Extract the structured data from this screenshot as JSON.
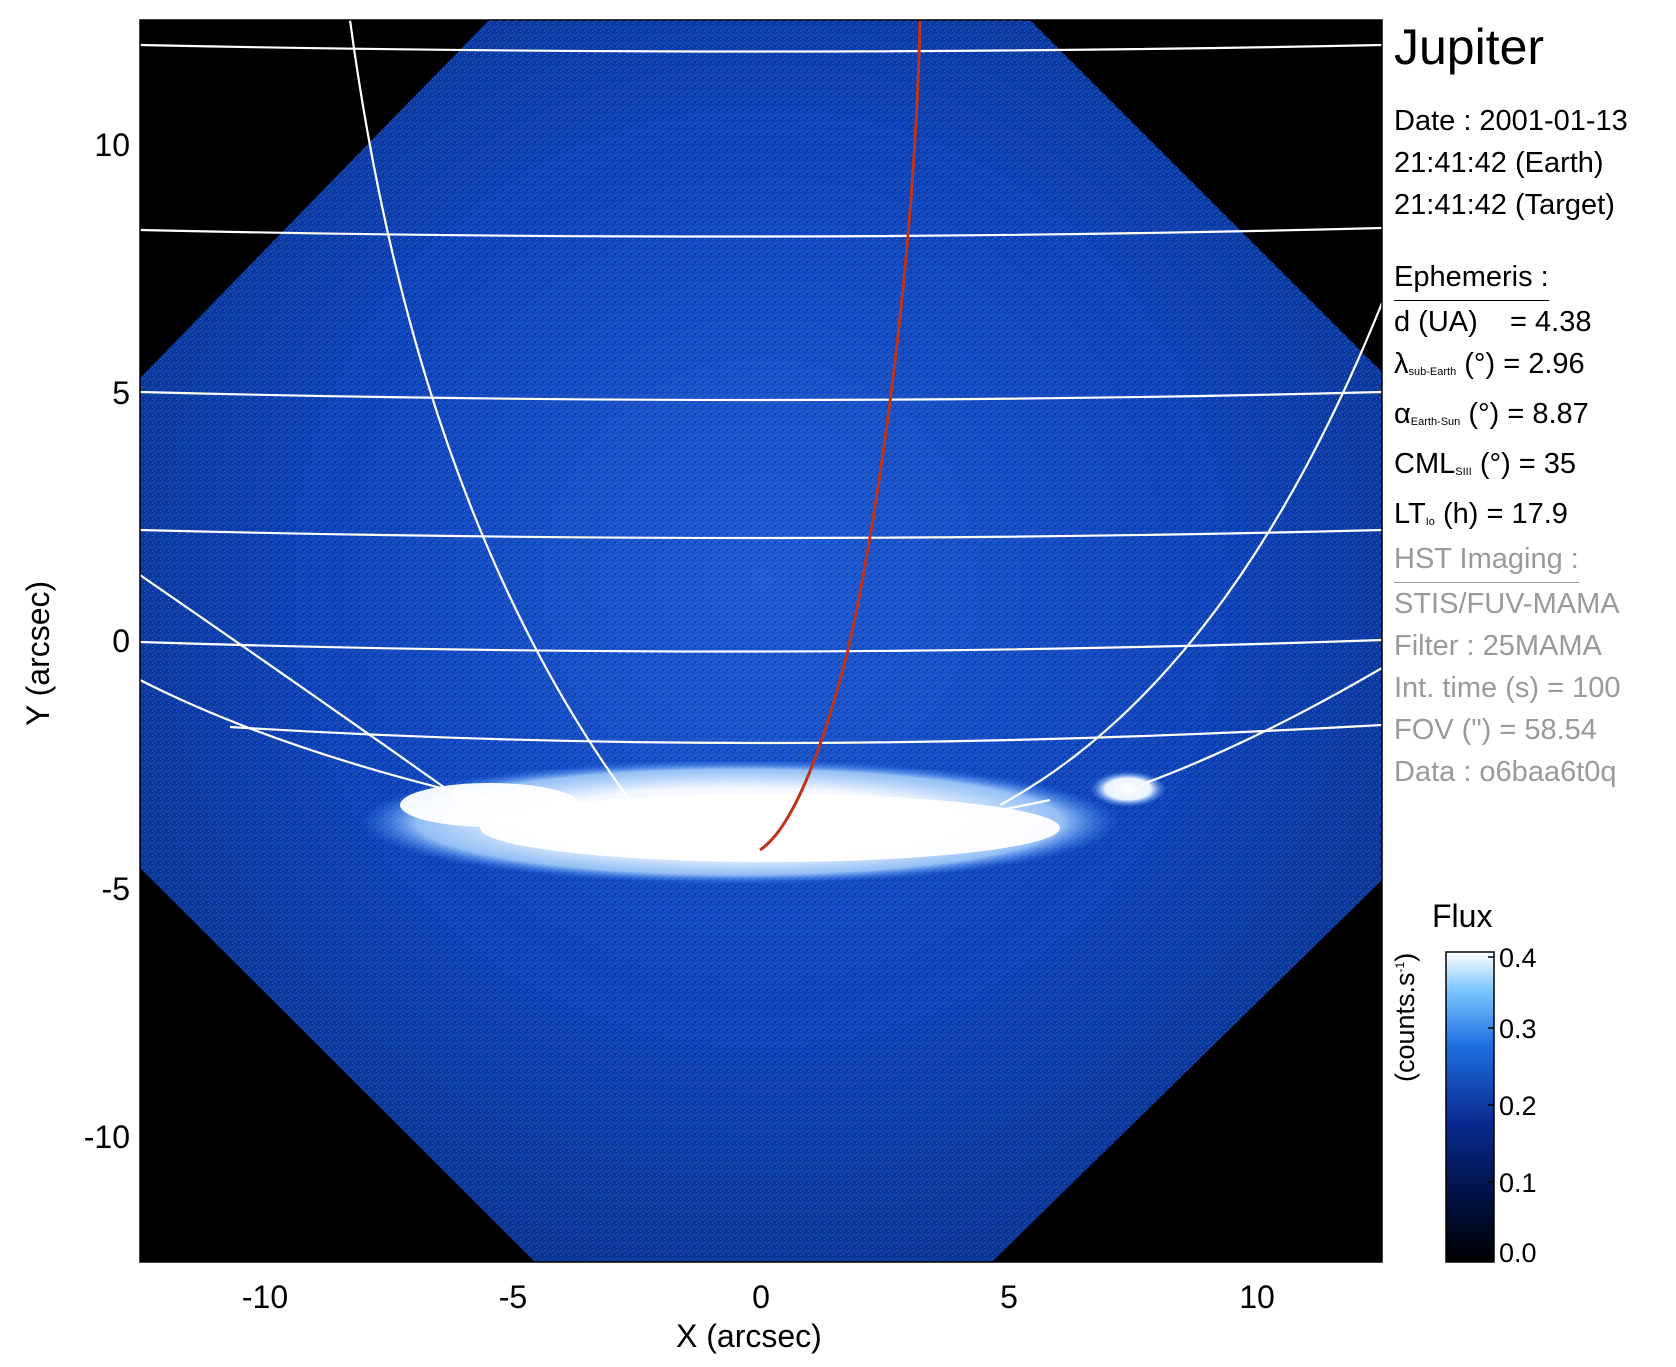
{
  "title": "Jupiter",
  "observation": {
    "date_line": "Date : 2001-01-13",
    "time_earth": "21:41:42 (Earth)",
    "time_target": "21:41:42 (Target)"
  },
  "ephemeris": {
    "heading": "Ephemeris :",
    "d_label": "d (UA)",
    "d_value": "= 4.38",
    "lambda_symbol": "λ",
    "lambda_sub": "sub-Earth",
    "lambda_value": "(°) = 2.96",
    "alpha_symbol": "α",
    "alpha_sub": "Earth-Sun",
    "alpha_value": "(°) = 8.87",
    "cml_symbol": "CML",
    "cml_sub": "SIII",
    "cml_value": "(°) = 35",
    "lt_symbol": "LT",
    "lt_sub": "Io",
    "lt_value": "(h) = 17.9"
  },
  "imaging": {
    "heading": "HST Imaging :",
    "instrument": "STIS/FUV-MAMA",
    "filter": "Filter : 25MAMA",
    "int_time": "Int. time (s) = 100",
    "fov": "FOV (\") = 58.54",
    "data": "Data : o6baa6t0q"
  },
  "colorbar": {
    "title": "Flux",
    "label_main": "(counts.s",
    "label_sup": "-1",
    "label_end": ")",
    "ticks": [
      "0.4",
      "0.3",
      "0.2",
      "0.1",
      "0.0"
    ],
    "colors": [
      "#000000",
      "#001040",
      "#0a2a90",
      "#1f6fe0",
      "#7fc8ff",
      "#ffffff"
    ]
  },
  "axes": {
    "xlabel": "X (arcsec)",
    "ylabel": "Y (arcsec)",
    "x_ticks": [
      "-10",
      "-5",
      "0",
      "5",
      "10"
    ],
    "y_ticks": [
      "10",
      "5",
      "0",
      "-5",
      "-10"
    ]
  },
  "colors": {
    "detector_field": "#0d3fb2",
    "aurora": "#ffffff",
    "grid_lines": "#ffffff",
    "footprint_line": "#c0321a",
    "background": "#000000"
  }
}
